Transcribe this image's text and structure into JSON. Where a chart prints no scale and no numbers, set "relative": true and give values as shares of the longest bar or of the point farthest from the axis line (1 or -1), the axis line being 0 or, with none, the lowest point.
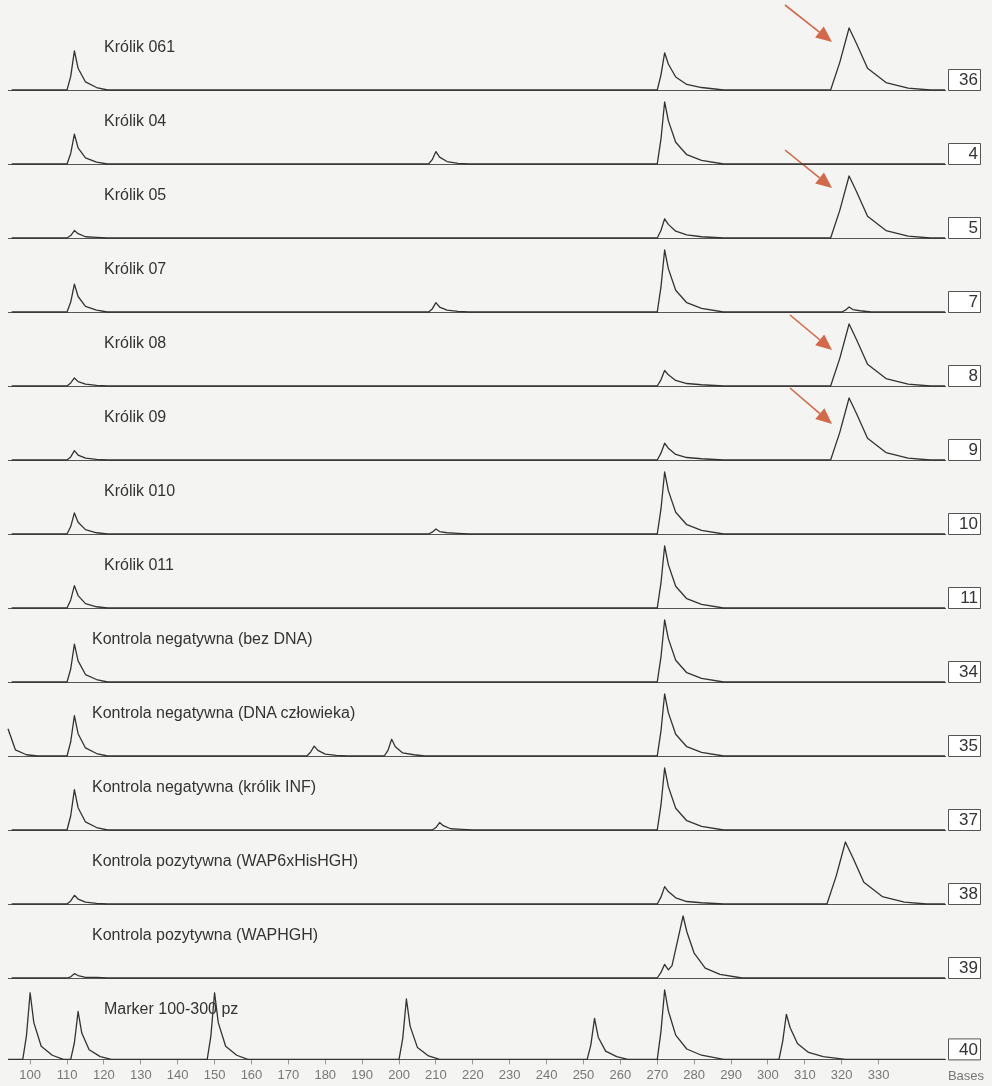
{
  "chart_data": [
    {
      "type": "line",
      "title": "Królik 061",
      "color": "#333333",
      "relative": true,
      "annotations": [
        "36"
      ],
      "xlim": [
        94,
        348
      ],
      "xticks": [
        100,
        110,
        120,
        130,
        140,
        150,
        160,
        170,
        180,
        190,
        200,
        210,
        220,
        230,
        240,
        250,
        260,
        270,
        280,
        290,
        300,
        310,
        320,
        330
      ],
      "tick_labels": false,
      "x": [
        95,
        110,
        111,
        112,
        113,
        115,
        118,
        121,
        270,
        271,
        272,
        273,
        275,
        278,
        282,
        288,
        317,
        319.5,
        322,
        324,
        327,
        332,
        338,
        344,
        348
      ],
      "values": [
        0,
        0,
        0.22,
        0.63,
        0.35,
        0.13,
        0.04,
        0,
        0,
        0.24,
        0.6,
        0.42,
        0.21,
        0.09,
        0.04,
        0,
        0,
        0.45,
        1,
        0.75,
        0.35,
        0.12,
        0.03,
        0,
        0
      ]
    },
    {
      "type": "line",
      "title": "Królik 04",
      "color": "#333333",
      "relative": true,
      "annotations": [
        "4"
      ],
      "xlim": [
        94,
        348
      ],
      "xticks": [
        100,
        110,
        120,
        130,
        140,
        150,
        160,
        170,
        180,
        190,
        200,
        210,
        220,
        230,
        240,
        250,
        260,
        270,
        280,
        290,
        300,
        310,
        320,
        330
      ],
      "tick_labels": false,
      "x": [
        95,
        110,
        111,
        112,
        113,
        115,
        118,
        121,
        208,
        209,
        210,
        211,
        213,
        216,
        219,
        270,
        271,
        272,
        273,
        275,
        278,
        282,
        288,
        348
      ],
      "values": [
        0,
        0,
        0.17,
        0.48,
        0.26,
        0.1,
        0.03,
        0,
        0,
        0.07,
        0.2,
        0.11,
        0.04,
        0.01,
        0,
        0,
        0.4,
        1,
        0.7,
        0.35,
        0.15,
        0.06,
        0,
        0
      ]
    },
    {
      "type": "line",
      "title": "Królik 05",
      "color": "#333333",
      "relative": true,
      "annotations": [
        "5"
      ],
      "xlim": [
        94,
        348
      ],
      "xticks": [
        100,
        110,
        120,
        130,
        140,
        150,
        160,
        170,
        180,
        190,
        200,
        210,
        220,
        230,
        240,
        250,
        260,
        270,
        280,
        290,
        300,
        310,
        320,
        330
      ],
      "tick_labels": false,
      "x": [
        95,
        110,
        111,
        112,
        113,
        115,
        118,
        121,
        270,
        271,
        272,
        273,
        275,
        278,
        282,
        288,
        317,
        319.5,
        322,
        324,
        327,
        332,
        338,
        344,
        348
      ],
      "values": [
        0,
        0,
        0.04,
        0.12,
        0.07,
        0.02,
        0.01,
        0,
        0,
        0.12,
        0.31,
        0.22,
        0.11,
        0.05,
        0.02,
        0,
        0,
        0.45,
        1,
        0.75,
        0.35,
        0.12,
        0.03,
        0,
        0
      ]
    },
    {
      "type": "line",
      "title": "Królik 07",
      "color": "#333333",
      "relative": true,
      "annotations": [
        "7"
      ],
      "xlim": [
        94,
        348
      ],
      "xticks": [
        100,
        110,
        120,
        130,
        140,
        150,
        160,
        170,
        180,
        190,
        200,
        210,
        220,
        230,
        240,
        250,
        260,
        270,
        280,
        290,
        300,
        310,
        320,
        330
      ],
      "tick_labels": false,
      "x": [
        95,
        110,
        111,
        112,
        113,
        115,
        118,
        121,
        208,
        209,
        210,
        211,
        213,
        216,
        219,
        270,
        271,
        272,
        273,
        275,
        278,
        282,
        288,
        320,
        321,
        322,
        323,
        325,
        328,
        348
      ],
      "values": [
        0,
        0,
        0.16,
        0.45,
        0.25,
        0.09,
        0.03,
        0,
        0,
        0.05,
        0.15,
        0.08,
        0.03,
        0.01,
        0,
        0,
        0.4,
        1,
        0.7,
        0.35,
        0.15,
        0.06,
        0,
        0,
        0.03,
        0.08,
        0.04,
        0.02,
        0,
        0
      ]
    },
    {
      "type": "line",
      "title": "Królik 08",
      "color": "#333333",
      "relative": true,
      "annotations": [
        "8"
      ],
      "xlim": [
        94,
        348
      ],
      "xticks": [
        100,
        110,
        120,
        130,
        140,
        150,
        160,
        170,
        180,
        190,
        200,
        210,
        220,
        230,
        240,
        250,
        260,
        270,
        280,
        290,
        300,
        310,
        320,
        330
      ],
      "tick_labels": false,
      "x": [
        95,
        110,
        111,
        112,
        113,
        115,
        118,
        121,
        270,
        271,
        272,
        273,
        275,
        278,
        282,
        288,
        317,
        319.5,
        322,
        324,
        327,
        332,
        338,
        344,
        348
      ],
      "values": [
        0,
        0,
        0.05,
        0.13,
        0.07,
        0.03,
        0.01,
        0,
        0,
        0.1,
        0.25,
        0.18,
        0.09,
        0.04,
        0.02,
        0,
        0,
        0.45,
        1,
        0.75,
        0.35,
        0.12,
        0.03,
        0,
        0
      ]
    },
    {
      "type": "line",
      "title": "Królik 09",
      "color": "#333333",
      "relative": true,
      "annotations": [
        "9"
      ],
      "xlim": [
        94,
        348
      ],
      "xticks": [
        100,
        110,
        120,
        130,
        140,
        150,
        160,
        170,
        180,
        190,
        200,
        210,
        220,
        230,
        240,
        250,
        260,
        270,
        280,
        290,
        300,
        310,
        320,
        330
      ],
      "tick_labels": false,
      "x": [
        95,
        110,
        111,
        112,
        113,
        115,
        118,
        121,
        270,
        271,
        272,
        273,
        275,
        278,
        282,
        288,
        317,
        319.5,
        322,
        324,
        327,
        332,
        338,
        344,
        348
      ],
      "values": [
        0,
        0,
        0.05,
        0.15,
        0.08,
        0.03,
        0.01,
        0,
        0,
        0.11,
        0.27,
        0.19,
        0.09,
        0.04,
        0.02,
        0,
        0,
        0.45,
        1,
        0.75,
        0.35,
        0.12,
        0.03,
        0,
        0
      ]
    },
    {
      "type": "line",
      "title": "Królik 010",
      "color": "#333333",
      "relative": true,
      "annotations": [
        "10"
      ],
      "xlim": [
        94,
        348
      ],
      "xticks": [
        100,
        110,
        120,
        130,
        140,
        150,
        160,
        170,
        180,
        190,
        200,
        210,
        220,
        230,
        240,
        250,
        260,
        270,
        280,
        290,
        300,
        310,
        320,
        330
      ],
      "tick_labels": false,
      "x": [
        95,
        110,
        111,
        112,
        113,
        115,
        118,
        121,
        208,
        209,
        210,
        211,
        213,
        216,
        219,
        270,
        271,
        272,
        273,
        275,
        278,
        282,
        288,
        348
      ],
      "values": [
        0,
        0,
        0.12,
        0.34,
        0.19,
        0.07,
        0.02,
        0,
        0,
        0.03,
        0.08,
        0.04,
        0.02,
        0.01,
        0,
        0,
        0.4,
        1,
        0.7,
        0.35,
        0.15,
        0.06,
        0,
        0
      ]
    },
    {
      "type": "line",
      "title": "Królik 011",
      "color": "#333333",
      "relative": true,
      "annotations": [
        "11"
      ],
      "xlim": [
        94,
        348
      ],
      "xticks": [
        100,
        110,
        120,
        130,
        140,
        150,
        160,
        170,
        180,
        190,
        200,
        210,
        220,
        230,
        240,
        250,
        260,
        270,
        280,
        290,
        300,
        310,
        320,
        330
      ],
      "tick_labels": false,
      "x": [
        95,
        110,
        111,
        112,
        113,
        115,
        118,
        121,
        270,
        271,
        272,
        273,
        275,
        278,
        282,
        288,
        348
      ],
      "values": [
        0,
        0,
        0.13,
        0.36,
        0.2,
        0.07,
        0.02,
        0,
        0,
        0.4,
        1,
        0.7,
        0.35,
        0.15,
        0.06,
        0,
        0
      ]
    },
    {
      "type": "line",
      "title": "Kontrola negatywna (bez DNA)",
      "color": "#333333",
      "relative": true,
      "annotations": [
        "34"
      ],
      "xlim": [
        94,
        348
      ],
      "xticks": [
        100,
        110,
        120,
        130,
        140,
        150,
        160,
        170,
        180,
        190,
        200,
        210,
        220,
        230,
        240,
        250,
        260,
        270,
        280,
        290,
        300,
        310,
        320,
        330
      ],
      "tick_labels": false,
      "x": [
        95,
        110,
        111,
        112,
        113,
        115,
        118,
        121,
        270,
        271,
        272,
        273,
        275,
        278,
        282,
        288,
        348
      ],
      "values": [
        0,
        0,
        0.21,
        0.61,
        0.34,
        0.12,
        0.04,
        0,
        0,
        0.4,
        1,
        0.7,
        0.35,
        0.15,
        0.06,
        0,
        0
      ]
    },
    {
      "type": "line",
      "title": "Kontrola negatywna (DNA człowieka)",
      "color": "#333333",
      "relative": true,
      "annotations": [
        "35"
      ],
      "xlim": [
        94,
        348
      ],
      "xticks": [
        100,
        110,
        120,
        130,
        140,
        150,
        160,
        170,
        180,
        190,
        200,
        210,
        220,
        230,
        240,
        250,
        260,
        270,
        280,
        290,
        300,
        310,
        320,
        330
      ],
      "tick_labels": false,
      "x": [
        94,
        96,
        99,
        102,
        110,
        111,
        112,
        113,
        115,
        118,
        121,
        175,
        176,
        177,
        178,
        180,
        183,
        186,
        196,
        197,
        198,
        199,
        201,
        204,
        207,
        270,
        271,
        272,
        273,
        275,
        278,
        282,
        288,
        348
      ],
      "values": [
        0.44,
        0.1,
        0.02,
        0,
        0,
        0.23,
        0.65,
        0.36,
        0.13,
        0.04,
        0,
        0,
        0.06,
        0.16,
        0.09,
        0.03,
        0.01,
        0,
        0,
        0.09,
        0.27,
        0.15,
        0.05,
        0.02,
        0,
        0,
        0.4,
        1,
        0.7,
        0.35,
        0.15,
        0.06,
        0,
        0
      ]
    },
    {
      "type": "line",
      "title": "Kontrola negatywna (królik INF)",
      "color": "#333333",
      "relative": true,
      "annotations": [
        "37"
      ],
      "xlim": [
        94,
        348
      ],
      "xticks": [
        100,
        110,
        120,
        130,
        140,
        150,
        160,
        170,
        180,
        190,
        200,
        210,
        220,
        230,
        240,
        250,
        260,
        270,
        280,
        290,
        300,
        310,
        320,
        330
      ],
      "tick_labels": false,
      "x": [
        95,
        110,
        111,
        112,
        113,
        115,
        118,
        121,
        209,
        210,
        211,
        212,
        214,
        217,
        220,
        270,
        271,
        272,
        273,
        275,
        278,
        282,
        288,
        348
      ],
      "values": [
        0,
        0,
        0.23,
        0.65,
        0.36,
        0.13,
        0.04,
        0,
        0,
        0.04,
        0.12,
        0.07,
        0.02,
        0.01,
        0,
        0,
        0.4,
        1,
        0.7,
        0.35,
        0.15,
        0.06,
        0,
        0
      ]
    },
    {
      "type": "line",
      "title": "Kontrola pozytywna (WAP6xHisHGH)",
      "color": "#333333",
      "relative": true,
      "annotations": [
        "38"
      ],
      "xlim": [
        94,
        348
      ],
      "xticks": [
        100,
        110,
        120,
        130,
        140,
        150,
        160,
        170,
        180,
        190,
        200,
        210,
        220,
        230,
        240,
        250,
        260,
        270,
        280,
        290,
        300,
        310,
        320,
        330
      ],
      "tick_labels": false,
      "x": [
        95,
        110,
        111,
        112,
        113,
        115,
        118,
        121,
        270,
        271,
        272,
        273,
        275,
        278,
        282,
        288,
        316,
        318.5,
        321,
        323,
        326,
        331,
        337,
        343,
        348
      ],
      "values": [
        0,
        0,
        0.05,
        0.14,
        0.08,
        0.03,
        0.01,
        0,
        0,
        0.11,
        0.28,
        0.2,
        0.1,
        0.04,
        0.02,
        0,
        0,
        0.45,
        1,
        0.75,
        0.35,
        0.12,
        0.03,
        0,
        0
      ]
    },
    {
      "type": "line",
      "title": "Kontrola pozytywna (WAPHGH)",
      "color": "#333333",
      "relative": true,
      "annotations": [
        "39"
      ],
      "xlim": [
        94,
        348
      ],
      "xticks": [
        100,
        110,
        120,
        130,
        140,
        150,
        160,
        170,
        180,
        190,
        200,
        210,
        220,
        230,
        240,
        250,
        260,
        270,
        280,
        290,
        300,
        310,
        320,
        330
      ],
      "tick_labels": false,
      "x": [
        95,
        110,
        111,
        112,
        113,
        115,
        118,
        121,
        270,
        271,
        272,
        273,
        274,
        275.5,
        277,
        278,
        280,
        283,
        287,
        293,
        348
      ],
      "values": [
        0,
        0,
        0.02,
        0.07,
        0.04,
        0.01,
        0.01,
        0,
        0,
        0.09,
        0.22,
        0.13,
        0.2,
        0.6,
        1,
        0.75,
        0.4,
        0.16,
        0.06,
        0,
        0
      ]
    },
    {
      "type": "line",
      "title": "Marker 100-300 pz",
      "color": "#333333",
      "relative": true,
      "annotations": [
        "40"
      ],
      "xlim": [
        94,
        348
      ],
      "xticks": [
        100,
        110,
        120,
        130,
        140,
        150,
        160,
        170,
        180,
        190,
        200,
        210,
        220,
        230,
        240,
        250,
        260,
        270,
        280,
        290,
        300,
        310,
        320,
        330
      ],
      "tick_labels": "x",
      "xlabel": "Bases",
      "x": [
        94,
        98,
        99,
        100,
        101,
        103,
        106,
        109,
        111,
        112,
        113,
        114,
        116,
        119,
        122,
        148,
        149,
        150,
        151,
        153,
        156,
        159,
        200,
        201,
        202,
        203,
        205,
        208,
        211,
        251,
        252,
        253,
        254,
        256,
        259,
        262,
        270,
        271,
        272,
        273,
        275,
        278,
        282,
        288,
        303,
        304,
        305,
        306,
        308,
        311,
        315,
        321,
        348
      ],
      "values": [
        0,
        0,
        0.34,
        0.96,
        0.53,
        0.19,
        0.06,
        0,
        0,
        0.24,
        0.69,
        0.38,
        0.14,
        0.04,
        0,
        0,
        0.34,
        0.96,
        0.53,
        0.19,
        0.06,
        0,
        0,
        0.3,
        0.87,
        0.48,
        0.17,
        0.05,
        0,
        0,
        0.21,
        0.59,
        0.32,
        0.12,
        0.04,
        0,
        0,
        0.4,
        1,
        0.7,
        0.35,
        0.15,
        0.06,
        0,
        0,
        0.26,
        0.65,
        0.46,
        0.23,
        0.1,
        0.04,
        0,
        0
      ]
    }
  ]
}
